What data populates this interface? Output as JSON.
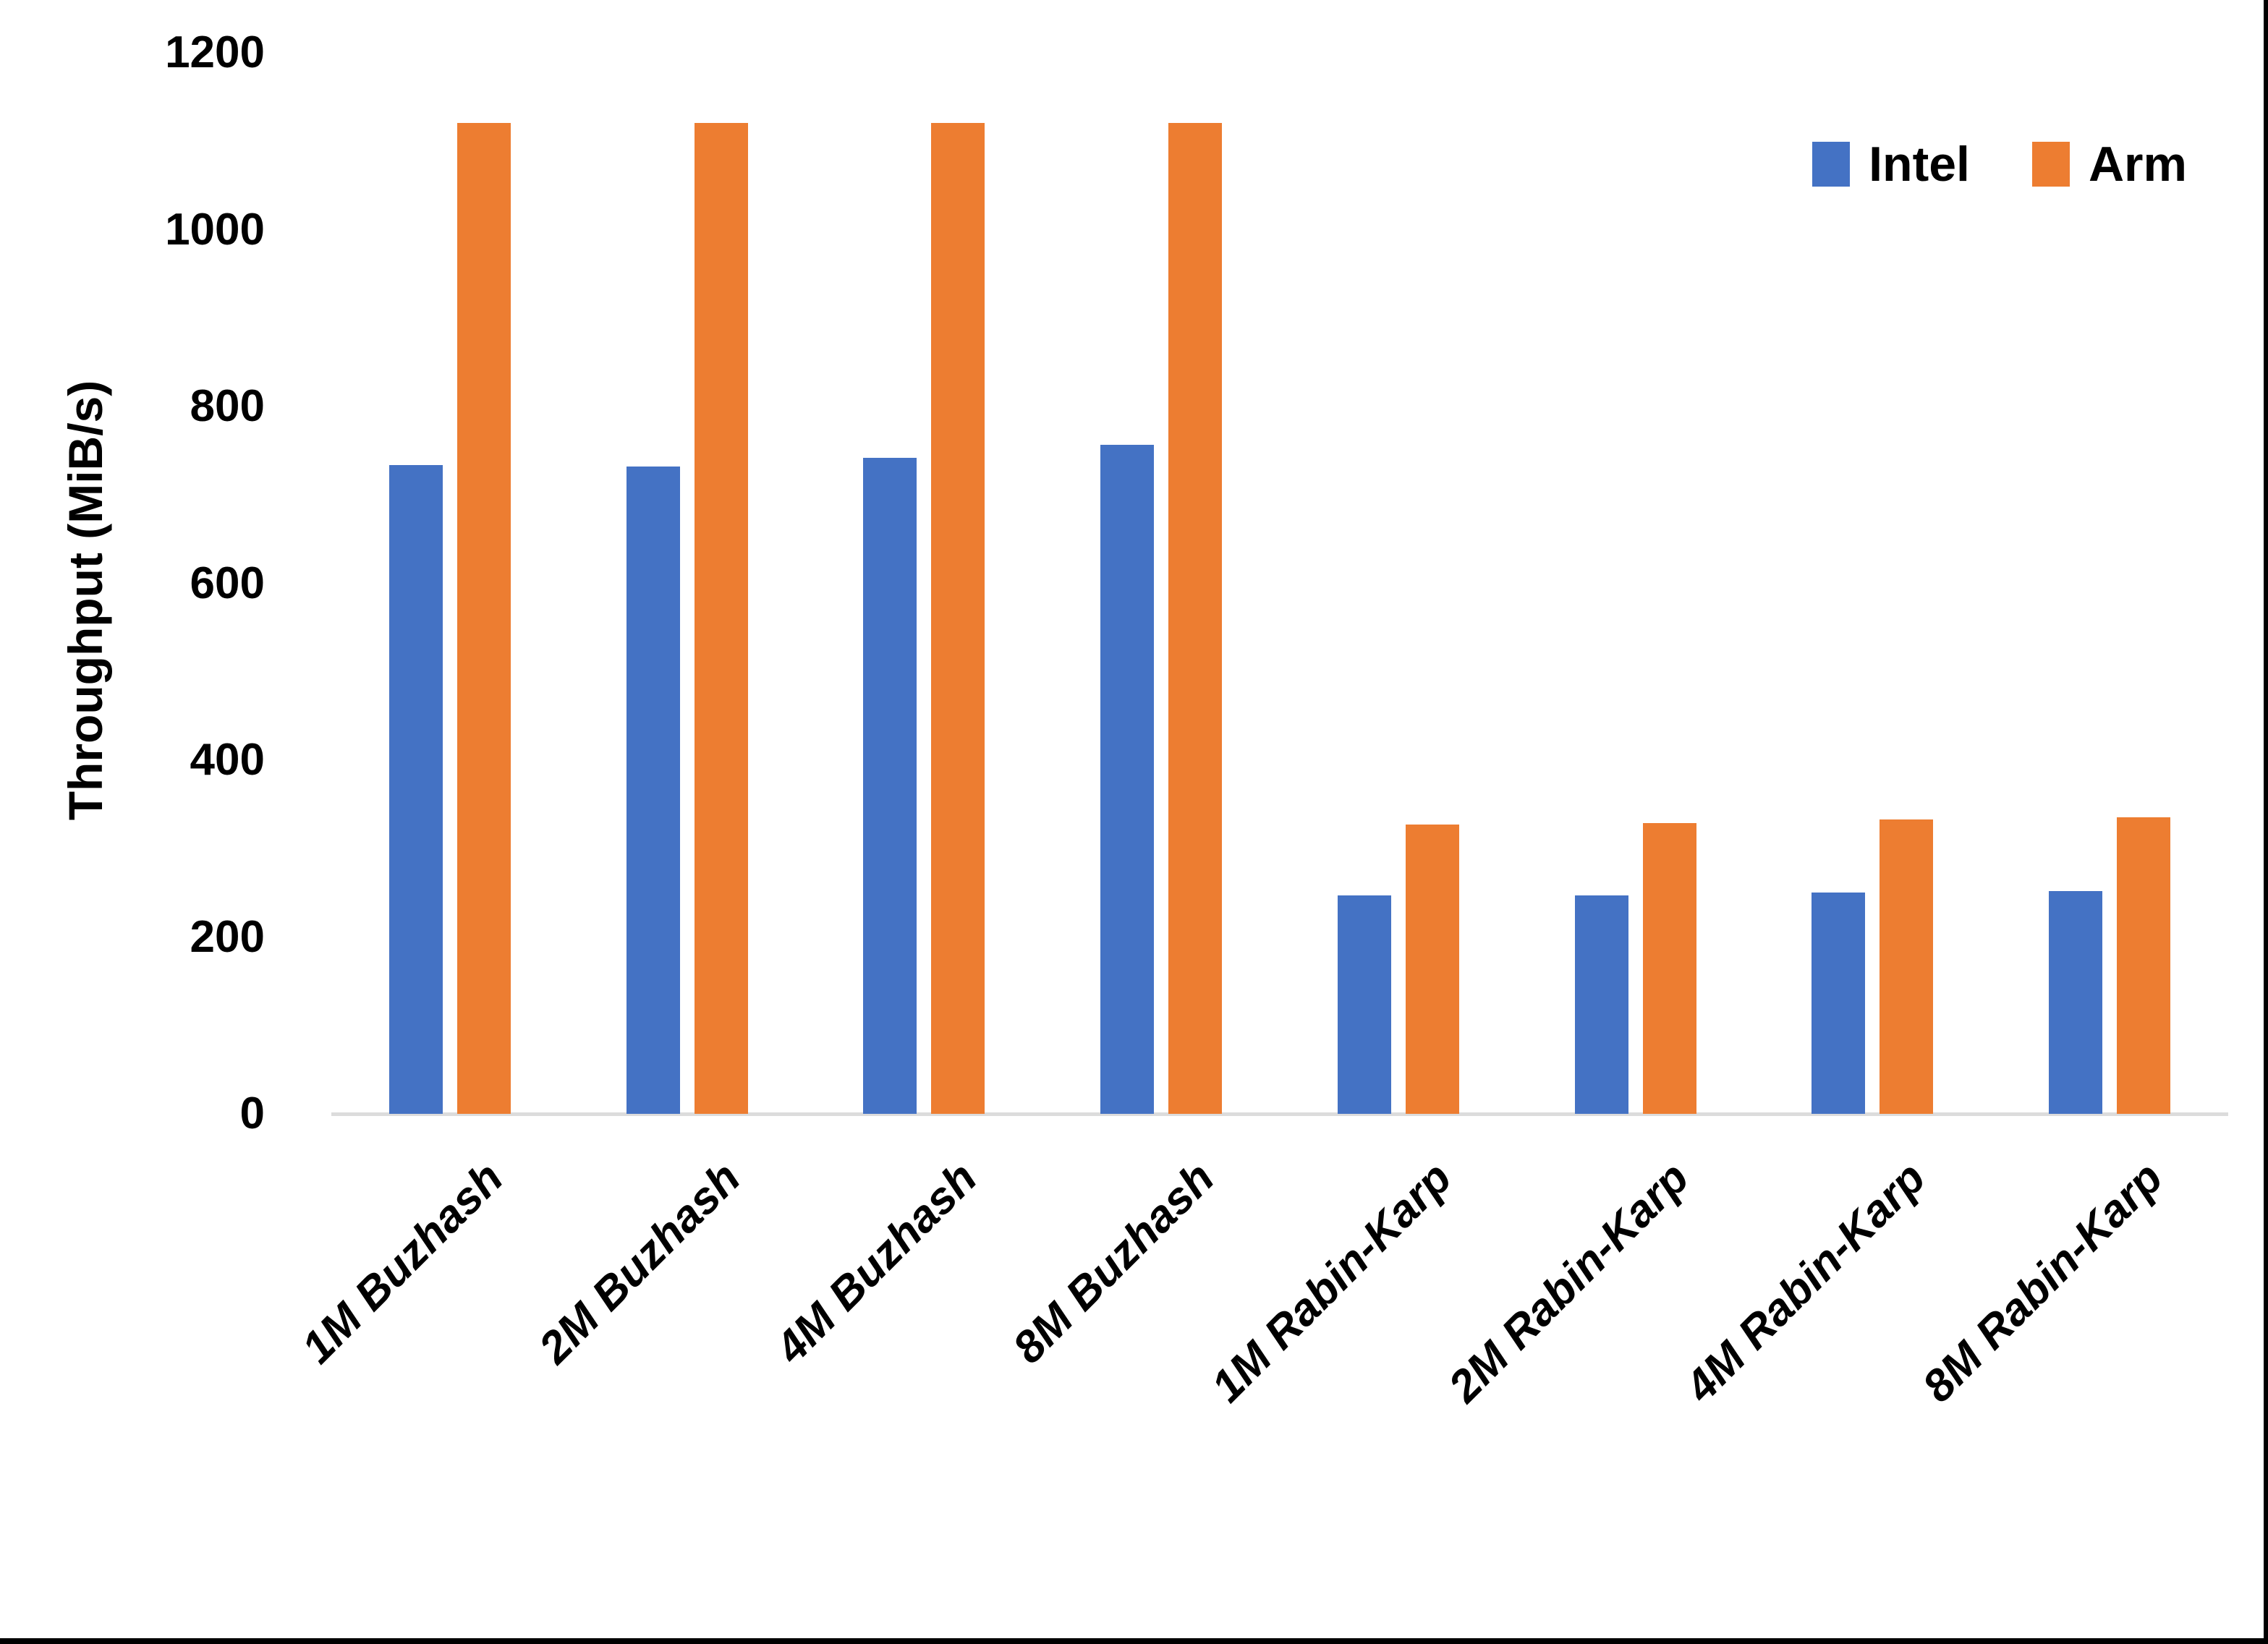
{
  "chart_data": {
    "type": "bar",
    "title": "",
    "xlabel": "",
    "ylabel": "Throughput (MiB/s)",
    "ylim": [
      0,
      1200
    ],
    "yticks": [
      0,
      200,
      400,
      600,
      800,
      1000,
      1200
    ],
    "grid": false,
    "legend_position": "top-right",
    "categories": [
      "1M Buzhash",
      "2M Buzhash",
      "4M Buzhash",
      "8M Buzhash",
      "1M Rabin-Karp",
      "2M Rabin-Karp",
      "4M Rabin-Karp",
      "8M Rabin-Karp"
    ],
    "series": [
      {
        "name": "Intel",
        "color": "#4472C4",
        "values": [
          734,
          732,
          742,
          757,
          247,
          247,
          250,
          252
        ]
      },
      {
        "name": "Arm",
        "color": "#ED7D31",
        "values": [
          1121,
          1121,
          1121,
          1121,
          327,
          329,
          333,
          335
        ]
      }
    ]
  },
  "colors": {
    "background": "#FFFFFF",
    "axis_line": "#DCDCDC",
    "text": "#000000",
    "window_border": "#000000"
  }
}
